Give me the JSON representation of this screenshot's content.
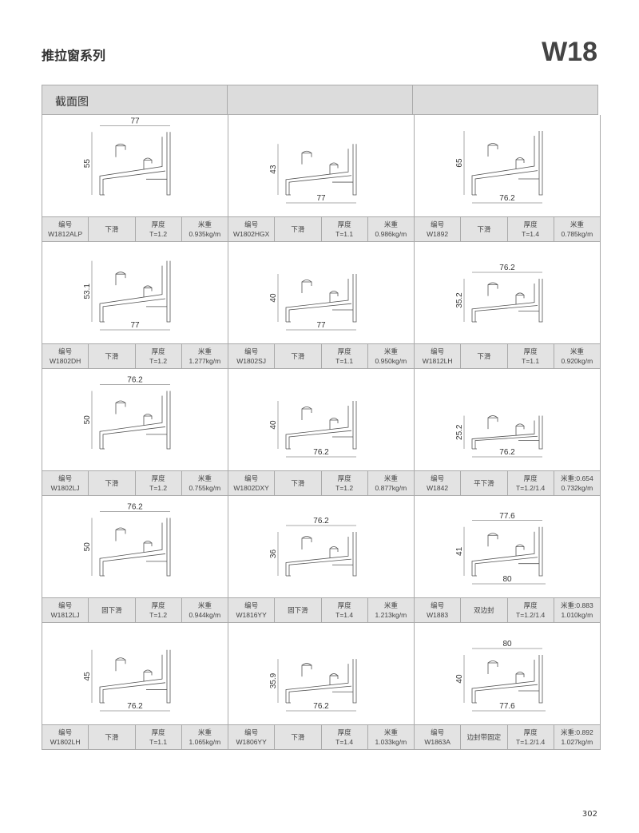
{
  "header": {
    "series_title": "推拉窗系列",
    "series_code": "W18",
    "section_label": "截面图"
  },
  "labels": {
    "code": "编号",
    "thickness": "厚度",
    "weight": "米重"
  },
  "page_number": "302",
  "profiles": [
    {
      "code": "W1812ALP",
      "type": "下滑",
      "thickness": "T=1.2",
      "weight": "0.935kg/m",
      "width": "77",
      "height": "55",
      "width_pos": "top"
    },
    {
      "code": "W1802HGX",
      "type": "下滑",
      "thickness": "T=1.1",
      "weight": "0.986kg/m",
      "width": "77",
      "height": "43",
      "width_pos": "bottom"
    },
    {
      "code": "W1892",
      "type": "下滑",
      "thickness": "T=1.4",
      "weight": "0.785kg/m",
      "width": "76.2",
      "height": "65",
      "width_pos": "bottom"
    },
    {
      "code": "W1802DH",
      "type": "下滑",
      "thickness": "T=1.2",
      "weight": "1.277kg/m",
      "width": "77",
      "height": "53.1",
      "width_pos": "bottom"
    },
    {
      "code": "W1802SJ",
      "type": "下滑",
      "thickness": "T=1.1",
      "weight": "0.950kg/m",
      "width": "77",
      "height": "40",
      "width_pos": "bottom"
    },
    {
      "code": "W1812LH",
      "type": "下滑",
      "thickness": "T=1.1",
      "weight": "0.920kg/m",
      "width": "76.2",
      "height": "35.2",
      "width_pos": "top"
    },
    {
      "code": "W1802LJ",
      "type": "下滑",
      "thickness": "T=1.2",
      "weight": "0.755kg/m",
      "width": "76.2",
      "height": "50",
      "width_pos": "top"
    },
    {
      "code": "W1802DXY",
      "type": "下滑",
      "thickness": "T=1.2",
      "weight": "0.877kg/m",
      "width": "76.2",
      "height": "40",
      "width_pos": "bottom"
    },
    {
      "code": "W1842",
      "type": "平下滑",
      "thickness": "T=1.2/1.4",
      "weight_line1": "米重:0.654",
      "weight": "0.732kg/m",
      "width": "76.2",
      "height": "25.2",
      "width_pos": "bottom"
    },
    {
      "code": "W1812LJ",
      "type": "固下滑",
      "thickness": "T=1.2",
      "weight": "0.944kg/m",
      "width": "76.2",
      "height": "50",
      "width_pos": "top"
    },
    {
      "code": "W1816YY",
      "type": "固下滑",
      "thickness": "T=1.4",
      "weight": "1.213kg/m",
      "width": "76.2",
      "height": "36",
      "width_pos": "top"
    },
    {
      "code": "W1883",
      "type": "双边封",
      "thickness": "T=1.2/1.4",
      "weight_line1": "米重:0.883",
      "weight": "1.010kg/m",
      "width": "77.6",
      "width2": "80",
      "height": "41",
      "width_pos": "top"
    },
    {
      "code": "W1802LH",
      "type": "下滑",
      "thickness": "T=1.1",
      "weight": "1.065kg/m",
      "width": "76.2",
      "height": "45",
      "width_pos": "bottom"
    },
    {
      "code": "W1806YY",
      "type": "下滑",
      "thickness": "T=1.4",
      "weight": "1.033kg/m",
      "width": "76.2",
      "height": "35.9",
      "width_pos": "bottom"
    },
    {
      "code": "W1863A",
      "type": "边封带固定",
      "thickness": "T=1.2/1.4",
      "weight_line1": "米重:0.892",
      "weight": "1.027kg/m",
      "width": "80",
      "width2": "77.6",
      "height": "40",
      "width_pos": "top"
    }
  ]
}
